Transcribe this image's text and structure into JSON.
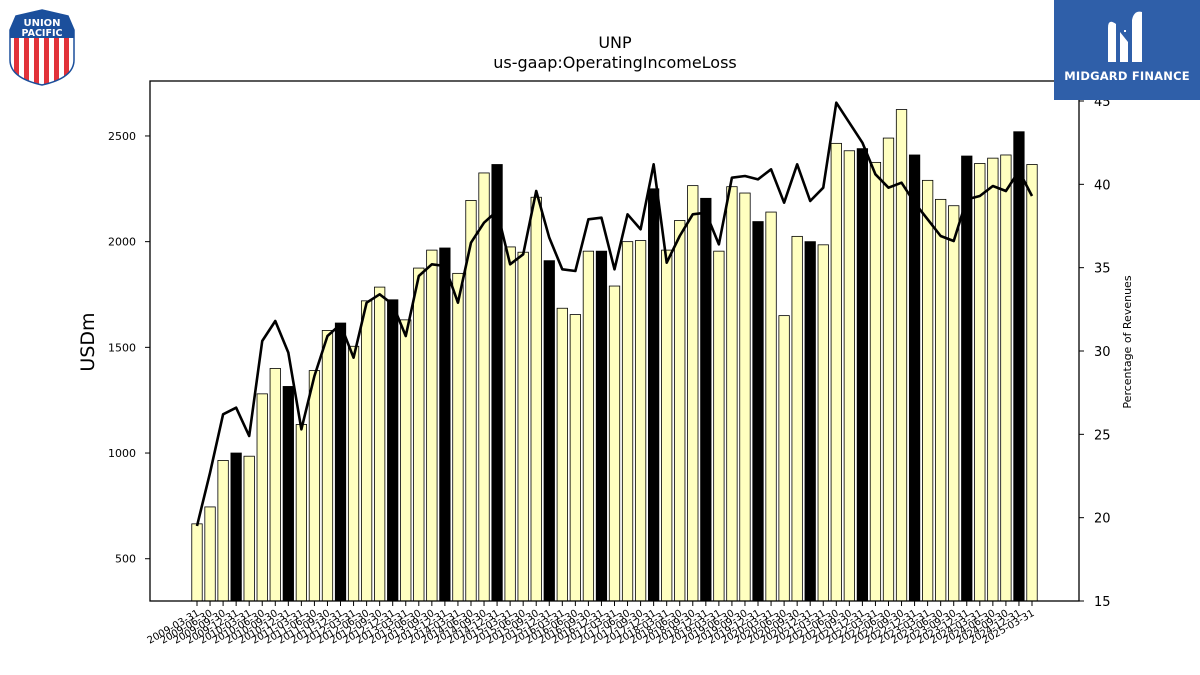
{
  "logos": {
    "left_text_line1": "UNION",
    "left_text_line2": "PACIFIC",
    "right_text": "MIDGARD FINANCE"
  },
  "colors": {
    "bar_fill": "#ffffc0",
    "bar_highlight": "#000000",
    "line": "#000000",
    "brand_blue": "#2f5fa9",
    "up_red": "#e2323a",
    "up_blue": "#1b4f9c"
  },
  "chart_data": {
    "type": "bar",
    "title": "UNP",
    "subtitle": "us-gaap:OperatingIncomeLoss",
    "ylabel": "USDm",
    "y2label": "Percentage of Revenues",
    "ylim": [
      300,
      2760
    ],
    "y2lim": [
      15,
      46.2
    ],
    "yticks": [
      500,
      1000,
      1500,
      2000,
      2500
    ],
    "y2ticks": [
      15,
      20,
      25,
      30,
      35,
      40,
      45
    ],
    "categories": [
      "2009-03-31",
      "2009-06-30",
      "2009-09-30",
      "2009-12-31",
      "2010-03-31",
      "2010-06-30",
      "2010-09-30",
      "2010-12-31",
      "2011-03-31",
      "2011-06-30",
      "2011-09-30",
      "2011-12-31",
      "2012-03-31",
      "2012-06-30",
      "2012-09-30",
      "2012-12-31",
      "2013-03-31",
      "2013-06-30",
      "2013-09-30",
      "2013-12-31",
      "2014-03-31",
      "2014-06-30",
      "2014-09-30",
      "2014-12-31",
      "2015-03-31",
      "2015-06-30",
      "2015-09-30",
      "2015-12-31",
      "2016-03-31",
      "2016-06-30",
      "2016-09-30",
      "2016-12-31",
      "2017-03-31",
      "2017-06-30",
      "2017-09-30",
      "2017-12-31",
      "2018-03-31",
      "2018-06-30",
      "2018-09-30",
      "2018-12-31",
      "2019-03-31",
      "2019-06-30",
      "2019-09-30",
      "2019-12-31",
      "2020-03-31",
      "2020-06-30",
      "2020-09-30",
      "2020-12-31",
      "2021-03-31",
      "2021-06-30",
      "2021-09-30",
      "2021-12-31",
      "2022-03-31",
      "2022-06-30",
      "2022-09-30",
      "2022-12-31",
      "2023-03-31",
      "2023-06-30",
      "2023-09-30",
      "2023-12-31",
      "2024-03-31",
      "2024-06-30",
      "2024-09-30",
      "2024-12-31",
      "2025-03-31"
    ],
    "x_tick_labels": [
      "2009-03-31",
      "2009-06-30",
      "2009-09-30",
      "2009-12-31",
      "2010-03-31",
      "2010-06-30",
      "2010-09-30",
      "2010-12-31",
      "2011-03-31",
      "2011-06-30",
      "2011-09-30",
      "2011-12-31",
      "2012-03-31",
      "2012-06-30",
      "2012-09-30",
      "2012-12-31",
      "2013-03-31",
      "2013-06-30",
      "2013-09-30",
      "2013-12-31",
      "2014-03-31",
      "2014-06-30",
      "2014-09-30",
      "2014-12-31",
      "2015-03-31",
      "2015-06-30",
      "2015-09-30",
      "2015-12-31",
      "2016-03-31",
      "2016-06-30",
      "2016-09-30",
      "2016-12-31",
      "2017-03-31",
      "2017-06-30",
      "2017-09-30",
      "2017-12-31",
      "2018-03-31",
      "2018-06-30",
      "2018-09-30",
      "2018-12-31",
      "2019-03-31",
      "2019-06-30",
      "2019-09-30",
      "2019-12-31",
      "2020-03-31",
      "2020-06-30",
      "2020-09-30",
      "2020-12-31",
      "2021-03-31",
      "2021-06-30",
      "2021-09-30",
      "2021-12-31",
      "2022-03-31",
      "2022-06-30",
      "2022-09-30",
      "2022-12-31",
      "2023-03-31",
      "2023-06-30",
      "2023-09-30",
      "2023-12-31",
      "2024-03-31",
      "2024-06-30",
      "2024-09-30",
      "2024-12-31",
      "2025-03-31"
    ],
    "highlight_period": "Q4",
    "series": [
      {
        "type": "bar",
        "axis": "left",
        "values": [
          665,
          745,
          965,
          1000,
          985,
          1280,
          1400,
          1315,
          1135,
          1390,
          1580,
          1615,
          1505,
          1720,
          1785,
          1725,
          1630,
          1875,
          1960,
          1970,
          1850,
          2195,
          2325,
          2365,
          1975,
          1950,
          2210,
          1910,
          1685,
          1655,
          1955,
          1955,
          1790,
          2000,
          2005,
          2250,
          1960,
          2100,
          2265,
          2205,
          1955,
          2260,
          2230,
          2095,
          2140,
          1650,
          2025,
          2000,
          1985,
          2465,
          2430,
          2440,
          2375,
          2490,
          2625,
          2410,
          2290,
          2200,
          2170,
          2405,
          2370,
          2395,
          2410,
          2520,
          2365
        ]
      },
      {
        "type": "line",
        "axis": "right",
        "values": [
          19.5,
          22.7,
          26.2,
          26.6,
          24.9,
          30.6,
          31.8,
          29.9,
          25.3,
          28.5,
          30.9,
          31.6,
          29.6,
          32.9,
          33.4,
          32.8,
          30.9,
          34.5,
          35.2,
          35.1,
          32.9,
          36.5,
          37.7,
          38.4,
          35.2,
          35.8,
          39.6,
          36.8,
          34.9,
          34.8,
          37.9,
          38.0,
          34.9,
          38.2,
          37.3,
          41.2,
          35.3,
          36.9,
          38.2,
          38.3,
          36.4,
          40.4,
          40.5,
          40.3,
          40.9,
          38.9,
          41.2,
          39.0,
          39.8,
          44.9,
          43.7,
          42.5,
          40.6,
          39.8,
          40.1,
          38.9,
          37.9,
          36.9,
          36.6,
          39.1,
          39.3,
          39.9,
          39.6,
          40.8,
          39.3
        ]
      }
    ],
    "grid": false,
    "legend": "none"
  }
}
